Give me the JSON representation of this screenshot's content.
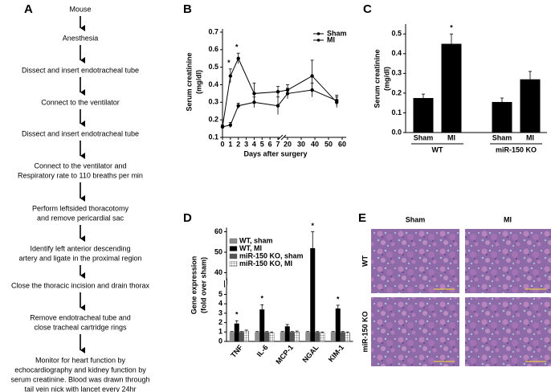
{
  "flowchart": {
    "panel": "A",
    "steps": [
      [
        "Mouse"
      ],
      [
        "Anesthesia"
      ],
      [
        "Dissect and insert endotracheal tube"
      ],
      [
        "Connect to the ventilator"
      ],
      [
        "Dissect and insert endotracheal tube"
      ],
      [
        "Connect to the ventilator and",
        "Respiratory rate to 110 breaths per min"
      ],
      [
        "Perform leftsided thoracotomy",
        "and remove pericardial sac"
      ],
      [
        "Identify left anterior descending",
        "artery and ligate  in the proximal region"
      ],
      [
        "Close the thoracic incision and drain thorax"
      ],
      [
        "Remove endotracheal tube and",
        "close tracheal cartridge rings"
      ],
      [
        "Monitor for heart  function by",
        "echocardiography and kidney function by",
        "serum creatinine. Blood was drawn through",
        "tail vein nick with lancet every 24hr"
      ]
    ]
  },
  "chart_data": [
    {
      "panel": "B",
      "type": "line",
      "ylabel": [
        "Serum creatinine",
        "(mg/dl)"
      ],
      "xlabel": "Days after surgery",
      "x": [
        0,
        1,
        2,
        4,
        7,
        20,
        38,
        56
      ],
      "xlim": [
        0,
        63
      ],
      "xticks": [
        0,
        1,
        2,
        3,
        4,
        5,
        6,
        7,
        20,
        30,
        40,
        50,
        60
      ],
      "axis_break": true,
      "ylim": [
        0.1,
        0.7
      ],
      "yticks": [
        0.1,
        0.2,
        0.3,
        0.4,
        0.5,
        0.6,
        0.7
      ],
      "legend": "top-right",
      "series": [
        {
          "name": "Sham",
          "color": "#000000",
          "values": [
            0.16,
            0.17,
            0.28,
            0.3,
            0.28,
            0.35,
            0.37,
            0.31
          ],
          "errors": [
            0.01,
            0.015,
            0.015,
            0.03,
            0.05,
            0.03,
            0.04,
            0.03
          ]
        },
        {
          "name": "MI",
          "color": "#000000",
          "values": [
            0.16,
            0.45,
            0.55,
            0.35,
            0.36,
            0.37,
            0.45,
            0.3
          ],
          "errors": [
            0.01,
            0.04,
            0.03,
            0.06,
            0.03,
            0.03,
            0.09,
            0.03
          ],
          "significance": [
            null,
            "*",
            "*",
            null,
            null,
            null,
            null,
            null
          ]
        }
      ]
    },
    {
      "panel": "C",
      "type": "bar",
      "ylabel": [
        "Serum creatinine",
        "(mg/dl)"
      ],
      "color": "#000000",
      "ylim": [
        0,
        0.55
      ],
      "yticks": [
        {
          "value": 0,
          "label": "0.0"
        },
        0.1,
        0.2,
        0.3,
        0.4,
        0.5
      ],
      "groups": [
        {
          "name": "WT",
          "categories": [
            "Sham",
            "MI"
          ],
          "values": [
            0.175,
            0.45
          ],
          "errors": [
            0.02,
            0.05
          ],
          "significance": [
            null,
            "*"
          ]
        },
        {
          "name": "miR-150 KO",
          "categories": [
            "Sham",
            "MI"
          ],
          "values": [
            0.155,
            0.27
          ],
          "errors": [
            0.02,
            0.04
          ],
          "significance": [
            null,
            null
          ]
        }
      ]
    },
    {
      "panel": "D",
      "type": "grouped_bar",
      "ylabel": [
        "Gene expression",
        "(fold over sham)"
      ],
      "categories": [
        "TNF",
        "IL-6",
        "MCP-1",
        "NGAL",
        "KIM-1"
      ],
      "ylim": [
        0,
        62
      ],
      "yticks": [
        0,
        1,
        2,
        3,
        4,
        5,
        40,
        50,
        60
      ],
      "axis_break": true,
      "legend": "top-left",
      "series": [
        {
          "name": "WT, sham",
          "color": "#8c8c8c",
          "values": [
            1,
            1,
            1,
            1,
            1
          ],
          "errors": [
            0.05,
            0.05,
            0.05,
            0.05,
            0.05
          ]
        },
        {
          "name": "WT, MI",
          "color": "#000000",
          "values": [
            1.9,
            3.4,
            1.6,
            52,
            3.5
          ],
          "errors": [
            0.3,
            0.5,
            0.2,
            8,
            0.35
          ],
          "significance": [
            "*",
            "*",
            null,
            "*",
            "*"
          ]
        },
        {
          "name": "miR-150 KO, sham",
          "color": "#555555",
          "values": [
            1,
            1,
            1,
            1,
            1
          ],
          "errors": [
            0.05,
            0.05,
            0.05,
            0.05,
            0.05
          ]
        },
        {
          "name": "miR-150 KO, MI",
          "color": "#ffffff",
          "pattern": "grid",
          "values": [
            1.1,
            0.9,
            1,
            0.9,
            0.9
          ],
          "errors": [
            0.1,
            0.1,
            0.1,
            0.1,
            0.1
          ]
        }
      ]
    }
  ],
  "histology": {
    "panel": "E",
    "columns": [
      "Sham",
      "MI"
    ],
    "rows": [
      "WT",
      "miR-150 KO"
    ]
  }
}
